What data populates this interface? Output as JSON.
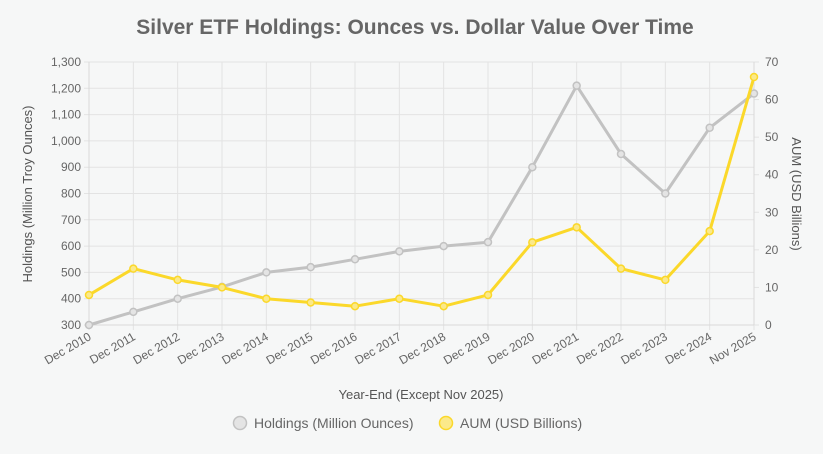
{
  "chart_data": {
    "type": "line",
    "title": "Silver ETF Holdings: Ounces vs. Dollar Value Over Time",
    "xlabel": "Year-End (Except Nov 2025)",
    "ylabel_left": "Holdings (Million Troy Ounces)",
    "ylabel_right": "AUM (USD Billions)",
    "categories": [
      "Dec 2010",
      "Dec 2011",
      "Dec 2012",
      "Dec 2013",
      "Dec 2014",
      "Dec 2015",
      "Dec 2016",
      "Dec 2017",
      "Dec 2018",
      "Dec 2019",
      "Dec 2020",
      "Dec 2021",
      "Dec 2022",
      "Dec 2023",
      "Dec 2024",
      "Nov 2025"
    ],
    "y_left": {
      "min": 300,
      "max": 1300,
      "ticks": [
        300,
        400,
        500,
        600,
        700,
        800,
        900,
        1000,
        1100,
        1200,
        1300
      ],
      "tick_labels": [
        "300",
        "400",
        "500",
        "600",
        "700",
        "800",
        "900",
        "1,000",
        "1,100",
        "1,200",
        "1,300"
      ]
    },
    "y_right": {
      "min": 0,
      "max": 70,
      "ticks": [
        0,
        10,
        20,
        30,
        40,
        50,
        60,
        70
      ],
      "tick_labels": [
        "0",
        "10",
        "20",
        "30",
        "40",
        "50",
        "60",
        "70"
      ]
    },
    "grid": true,
    "legend_position": "bottom",
    "series": [
      {
        "name": "Holdings (Million Ounces)",
        "axis": "left",
        "color": "#c2c2c2",
        "values": [
          300,
          350,
          400,
          445,
          500,
          520,
          550,
          580,
          600,
          615,
          900,
          1210,
          950,
          800,
          1050,
          1180
        ]
      },
      {
        "name": "AUM (USD Billions)",
        "axis": "right",
        "color": "#fbd82a",
        "values": [
          8,
          15,
          12,
          10,
          7,
          6,
          5,
          7,
          5,
          8,
          22,
          26,
          15,
          12,
          25,
          66
        ]
      }
    ]
  }
}
